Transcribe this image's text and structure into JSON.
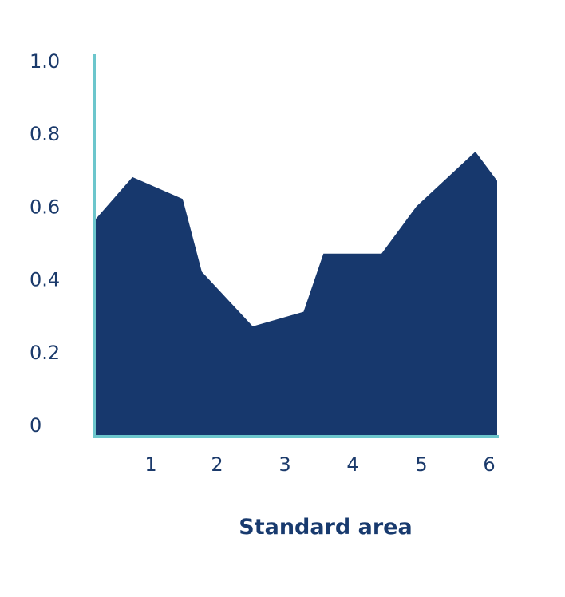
{
  "colors": {
    "area": "#17386d",
    "axis": "#6cc6cc",
    "text": "#1b3a6b"
  },
  "chart_data": {
    "type": "area",
    "title": "",
    "xlabel": "Standard area",
    "ylabel": "",
    "xlim": [
      0,
      6.1
    ],
    "ylim": [
      0,
      1.0
    ],
    "x_ticks": [
      "1",
      "2",
      "3",
      "4",
      "5",
      "6"
    ],
    "y_ticks": [
      "0",
      "0.2",
      "0.4",
      "0.6",
      "0.8",
      "1.0"
    ],
    "grid": false,
    "legend": "none",
    "x": [
      0,
      0.58,
      1.34,
      1.63,
      2.4,
      3.17,
      3.47,
      4.35,
      4.88,
      5.77,
      6.1
    ],
    "values": [
      0.56,
      0.68,
      0.62,
      0.42,
      0.27,
      0.31,
      0.47,
      0.47,
      0.6,
      0.75,
      0.67
    ]
  }
}
